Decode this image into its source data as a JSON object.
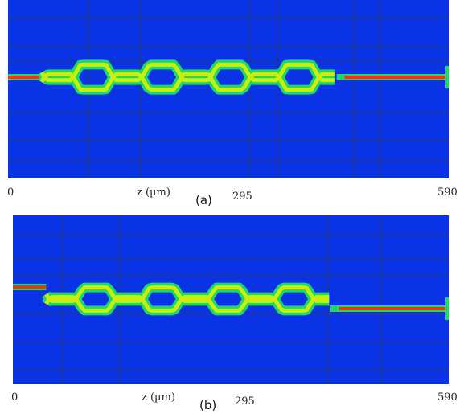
{
  "panels": [
    {
      "id": "a",
      "label": "(a)",
      "axis_label": "z (µm)",
      "ticks": [
        "0",
        "295",
        "590"
      ],
      "colors": {
        "background": "#0a33e6",
        "grid": "#2a3a5a",
        "field_low": "#1fd86a",
        "field_mid": "#c8ee10",
        "field_high": "#e43a0c"
      },
      "field": {
        "input_region_z": [
          0,
          45
        ],
        "oscillation_region_z": [
          45,
          440
        ],
        "output_region_z": [
          440,
          590
        ],
        "output_branch": "upper"
      }
    },
    {
      "id": "b",
      "label": "(b)",
      "axis_label": "z (µm)",
      "ticks": [
        "0",
        "295",
        "590"
      ],
      "colors": {
        "background": "#0a33e6",
        "grid": "#2a3a5a",
        "field_low": "#1fd86a",
        "field_mid": "#c8ee10",
        "field_high": "#e43a0c"
      },
      "field": {
        "input_region_z": [
          0,
          45
        ],
        "oscillation_region_z": [
          45,
          430
        ],
        "output_region_z": [
          430,
          590
        ],
        "output_branch": "lower"
      }
    }
  ]
}
